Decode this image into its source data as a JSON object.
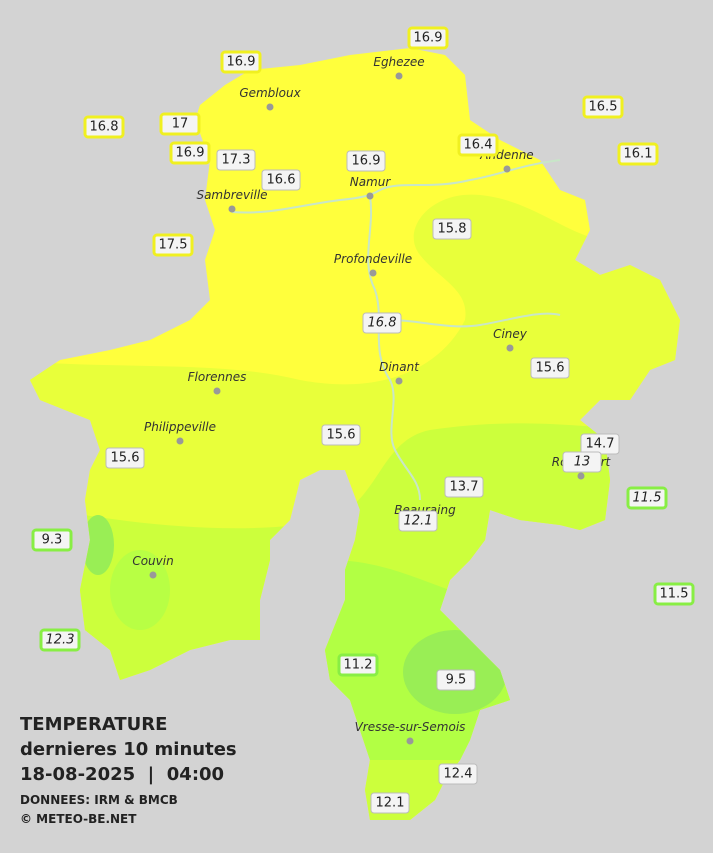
{
  "map": {
    "title": "TEMPERATURE",
    "subtitle": "dernieres 10 minutes",
    "timestamp": "18-08-2025  |  04:00",
    "source": "DONNEES: IRM & BMCB",
    "credit": "© METEO-BE.NET",
    "cities": [
      "Eghezee",
      "Gembloux",
      "Andenne",
      "Namur",
      "Sambreville",
      "Profondeville",
      "Ciney",
      "Dinant",
      "Florennes",
      "Philippeville",
      "Couvin",
      "Rochefort",
      "Beauraing",
      "Vresse-sur-Semois"
    ],
    "stations": [
      {
        "value": 16.9,
        "italic": false
      },
      {
        "value": 16.9,
        "italic": false
      },
      {
        "value": 16.8,
        "italic": false
      },
      {
        "value": 17.0,
        "italic": false
      },
      {
        "value": 16.9,
        "italic": false
      },
      {
        "value": 17.3,
        "italic": false
      },
      {
        "value": 16.6,
        "italic": false
      },
      {
        "value": 16.9,
        "italic": false
      },
      {
        "value": 16.4,
        "italic": false
      },
      {
        "value": 16.5,
        "italic": false
      },
      {
        "value": 16.1,
        "italic": false
      },
      {
        "value": 17.5,
        "italic": false
      },
      {
        "value": 15.8,
        "italic": false
      },
      {
        "value": 16.8,
        "italic": true
      },
      {
        "value": 15.6,
        "italic": false
      },
      {
        "value": 15.6,
        "italic": false
      },
      {
        "value": 15.6,
        "italic": false
      },
      {
        "value": 14.7,
        "italic": false
      },
      {
        "value": 13.0,
        "italic": true
      },
      {
        "value": 13.7,
        "italic": false
      },
      {
        "value": 11.5,
        "italic": true
      },
      {
        "value": 12.1,
        "italic": true
      },
      {
        "value": 9.3,
        "italic": false
      },
      {
        "value": 11.5,
        "italic": false
      },
      {
        "value": 12.3,
        "italic": true
      },
      {
        "value": 11.2,
        "italic": false
      },
      {
        "value": 9.5,
        "italic": false
      },
      {
        "value": 12.4,
        "italic": false
      },
      {
        "value": 12.1,
        "italic": false
      }
    ]
  }
}
